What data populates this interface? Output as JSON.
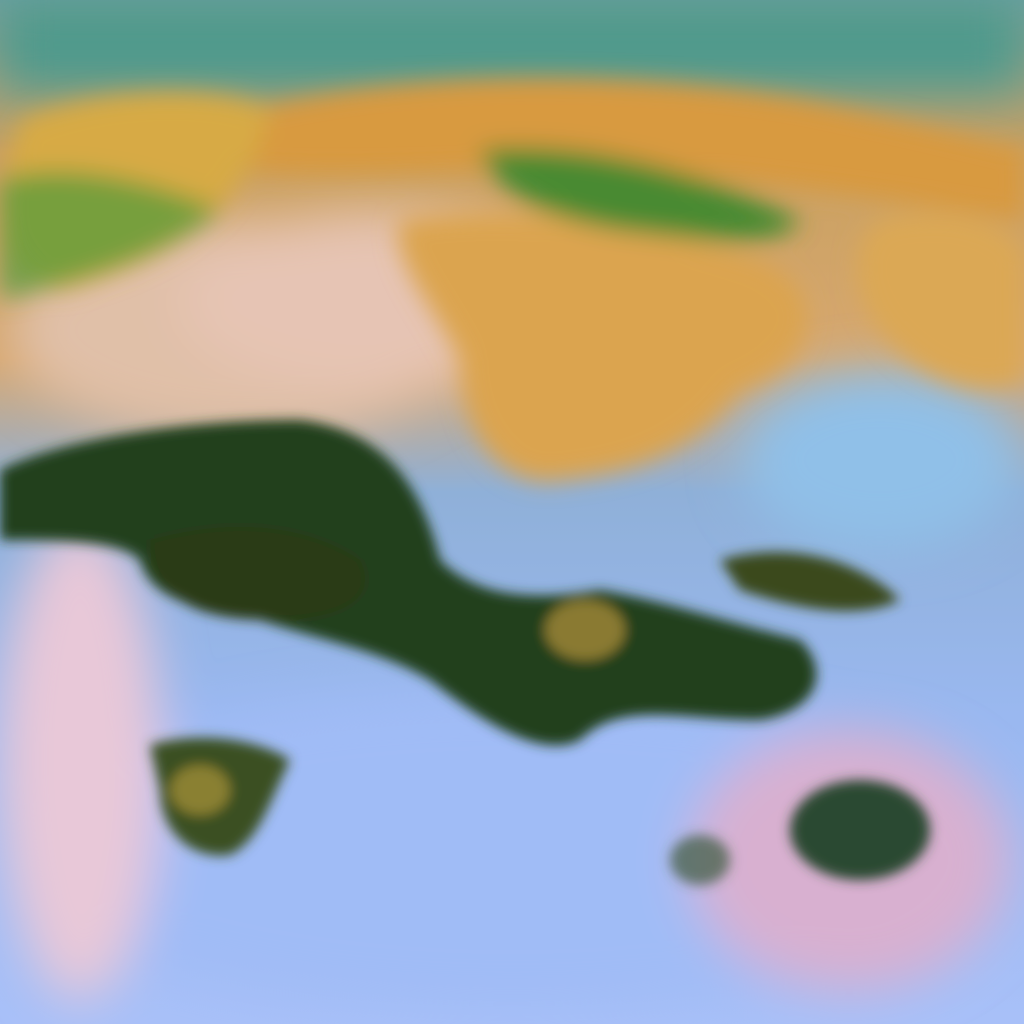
{
  "image": {
    "title": "",
    "palette": {
      "cloud_orange": "#d9a24a",
      "cloud_pink": "#e0b8b8",
      "land_dark_green": "#1f3a18",
      "sea_blue": "#98b6f2",
      "teal_edge": "#3ab0a0",
      "top_band": "#4e9a8c"
    }
  }
}
